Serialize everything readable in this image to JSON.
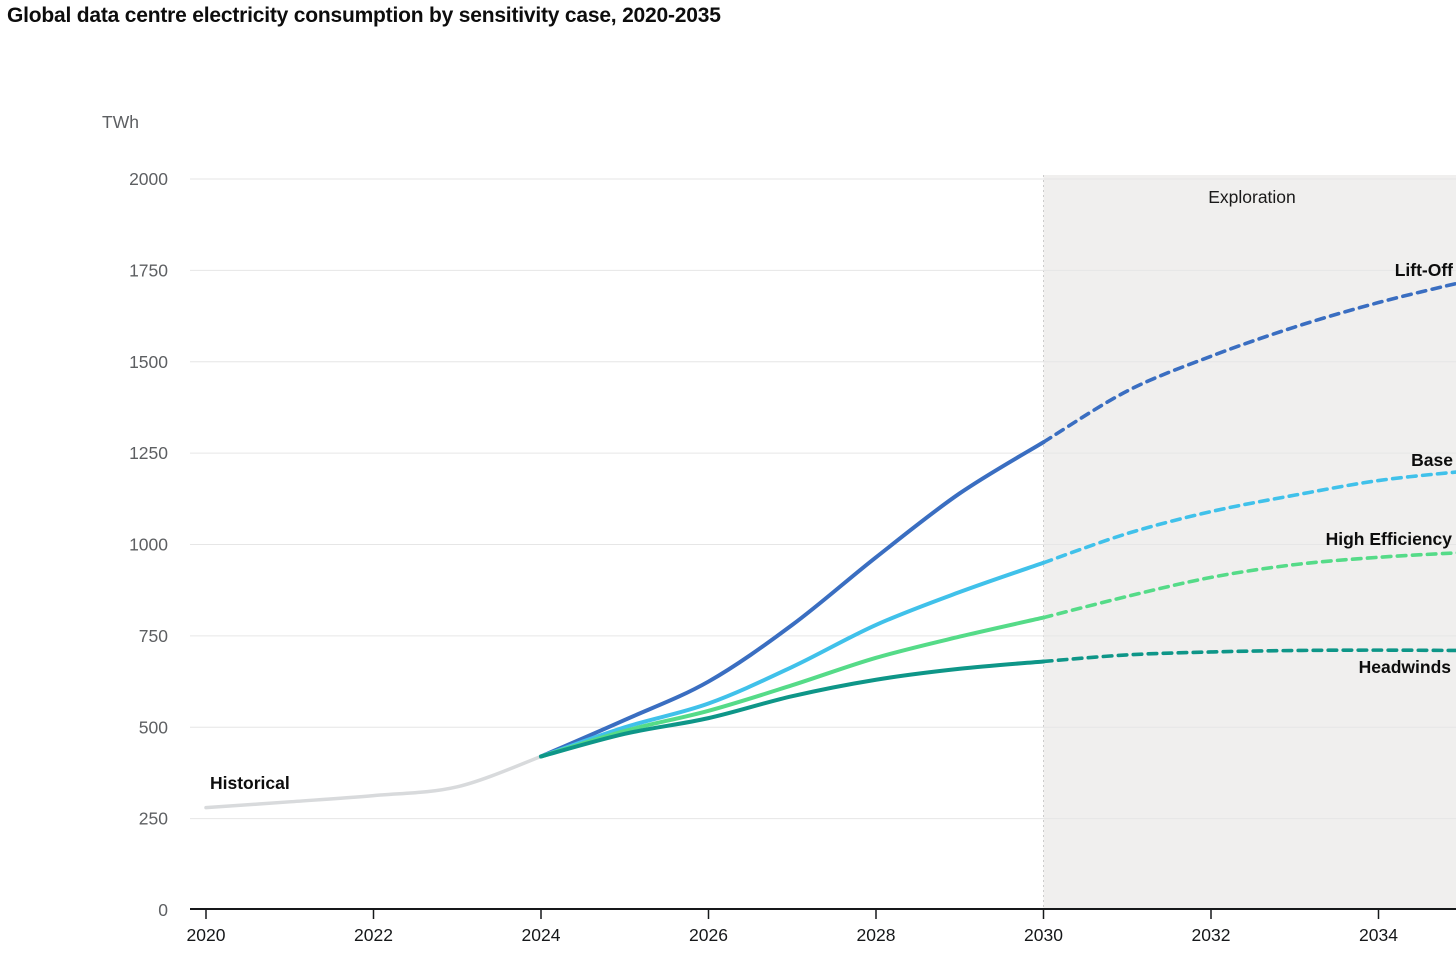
{
  "title": "Global data centre electricity consumption by sensitivity case, 2020-2035",
  "chart_data": {
    "type": "line",
    "title": "Global data centre electricity consumption by sensitivity case, 2020-2035",
    "xlabel": "",
    "ylabel": "TWh",
    "xlim": [
      2020,
      2035
    ],
    "ylim": [
      0,
      2000
    ],
    "grid": true,
    "legend_position": "end-of-line-labels",
    "y_ticks": [
      0,
      250,
      500,
      750,
      1000,
      1250,
      1500,
      1750,
      2000
    ],
    "x_ticks": [
      2020,
      2022,
      2024,
      2026,
      2028,
      2030,
      2032,
      2034
    ],
    "exploration_region": {
      "label": "Exploration",
      "x_start": 2030,
      "x_end": 2035,
      "fill_color": "#f0efee"
    },
    "series": [
      {
        "name": "Historical",
        "color": "#d8dadc",
        "style": "solid",
        "dashed_from": null,
        "x": [
          2020,
          2021,
          2022,
          2023,
          2024
        ],
        "values": [
          280,
          296,
          313,
          337,
          420
        ]
      },
      {
        "name": "Lift-Off",
        "color": "#3a6ec1",
        "style": "solid-then-dashed",
        "dashed_from": 2030,
        "x": [
          2024,
          2025,
          2026,
          2027,
          2028,
          2029,
          2030,
          2031,
          2032,
          2033,
          2034,
          2035
        ],
        "values": [
          420,
          520,
          625,
          780,
          965,
          1140,
          1280,
          1420,
          1515,
          1595,
          1662,
          1718
        ]
      },
      {
        "name": "Base",
        "color": "#40c1ea",
        "style": "solid-then-dashed",
        "dashed_from": 2030,
        "x": [
          2024,
          2025,
          2026,
          2027,
          2028,
          2029,
          2030,
          2031,
          2032,
          2033,
          2034,
          2035
        ],
        "values": [
          420,
          500,
          565,
          665,
          780,
          870,
          950,
          1030,
          1090,
          1135,
          1175,
          1200
        ]
      },
      {
        "name": "High Efficiency",
        "color": "#55db88",
        "style": "solid-then-dashed",
        "dashed_from": 2030,
        "x": [
          2024,
          2025,
          2026,
          2027,
          2028,
          2029,
          2030,
          2031,
          2032,
          2033,
          2034,
          2035
        ],
        "values": [
          420,
          490,
          545,
          615,
          690,
          748,
          800,
          858,
          910,
          945,
          965,
          978
        ]
      },
      {
        "name": "Headwinds",
        "color": "#0e9688",
        "style": "solid-then-dashed",
        "dashed_from": 2030,
        "x": [
          2024,
          2025,
          2026,
          2027,
          2028,
          2029,
          2030,
          2031,
          2032,
          2033,
          2034,
          2035
        ],
        "values": [
          420,
          482,
          525,
          585,
          630,
          660,
          680,
          698,
          706,
          710,
          711,
          710
        ]
      }
    ],
    "colors": {
      "axis": "#16181a",
      "gridline": "#e6e6e6",
      "y_tick_text": "#5d5f62",
      "x_tick_text": "#16181a",
      "region_border": "#cccccc"
    }
  }
}
